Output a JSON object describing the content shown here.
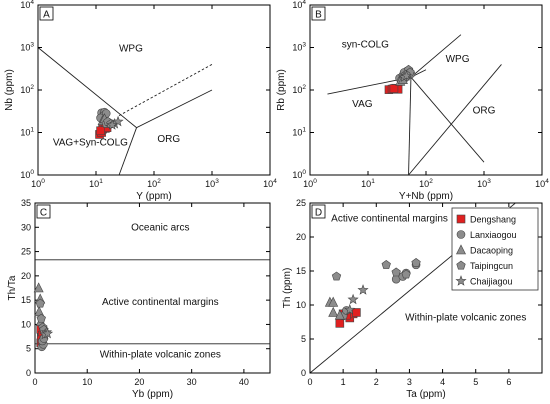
{
  "figure": {
    "background": "#ffffff"
  },
  "colors": {
    "Dengshang": "#e02020",
    "Lanxiaogou": "#8c8c8c",
    "Dacaoping": "#8c8c8c",
    "Taipingcun": "#8c8c8c",
    "Chaijiagou": "#8c8c8c",
    "stroke": "#444444",
    "line": "#222222"
  },
  "chart_data": [
    {
      "id": "A",
      "panel_label": "A",
      "type": "scatter",
      "xscale": "log",
      "yscale": "log",
      "xlim": [
        1,
        10000
      ],
      "ylim": [
        1,
        10000
      ],
      "xlabel": "Y (ppm)",
      "ylabel": "Nb (ppm)",
      "xticks": [
        {
          "v": 1,
          "b": "10",
          "e": "0"
        },
        {
          "v": 10,
          "b": "10",
          "e": "1"
        },
        {
          "v": 100,
          "b": "10",
          "e": "2"
        },
        {
          "v": 1000,
          "b": "10",
          "e": "3"
        },
        {
          "v": 10000,
          "b": "10",
          "e": "4"
        }
      ],
      "yticks": [
        {
          "v": 1,
          "b": "10",
          "e": "0"
        },
        {
          "v": 10,
          "b": "10",
          "e": "1"
        },
        {
          "v": 100,
          "b": "10",
          "e": "2"
        },
        {
          "v": 1000,
          "b": "10",
          "e": "3"
        },
        {
          "v": 10000,
          "b": "10",
          "e": "4"
        }
      ],
      "fields": [
        {
          "label": "WPG",
          "x": 40,
          "y": 800
        },
        {
          "label": "VAG+Syn-COLG",
          "x": 8,
          "y": 5
        },
        {
          "label": "ORG",
          "x": 180,
          "y": 6
        }
      ],
      "lines": [
        {
          "style": "solid",
          "points": [
            [
              1,
              1000
            ],
            [
              50,
              13
            ],
            [
              1000,
              100
            ]
          ]
        },
        {
          "style": "solid",
          "points": [
            [
              50,
              13
            ],
            [
              25,
              1
            ]
          ]
        },
        {
          "style": "dashed",
          "points": [
            [
              25,
              25
            ],
            [
              1000,
              400
            ]
          ]
        }
      ],
      "series": [
        {
          "name": "Dengshang",
          "marker": "square",
          "points": [
            [
              11.5,
              9
            ],
            [
              12.5,
              10
            ],
            [
              13,
              12
            ],
            [
              14.5,
              12.5
            ],
            [
              15.5,
              13
            ],
            [
              12,
              11
            ]
          ]
        },
        {
          "name": "Lanxiaogou",
          "marker": "circle",
          "points": [
            [
              12.5,
              29
            ],
            [
              14,
              30
            ],
            [
              13.5,
              25
            ],
            [
              15,
              28
            ],
            [
              12,
              22
            ]
          ]
        },
        {
          "name": "Dacaoping",
          "marker": "triangle",
          "points": [
            [
              13,
              19
            ],
            [
              14,
              21
            ]
          ]
        },
        {
          "name": "Taipingcun",
          "marker": "pentagon",
          "points": [
            [
              15,
              16
            ],
            [
              17,
              17
            ],
            [
              16,
              18
            ],
            [
              18,
              16
            ]
          ]
        },
        {
          "name": "Chaijiagou",
          "marker": "star",
          "points": [
            [
              21,
              16
            ],
            [
              24,
              18
            ],
            [
              19,
              15
            ]
          ]
        }
      ]
    },
    {
      "id": "B",
      "panel_label": "B",
      "type": "scatter",
      "xscale": "log",
      "yscale": "log",
      "xlim": [
        1,
        10000
      ],
      "ylim": [
        1,
        10000
      ],
      "xlabel": "Y+Nb (ppm)",
      "ylabel": "Rb (ppm)",
      "xticks": [
        {
          "v": 1,
          "b": "10",
          "e": "0"
        },
        {
          "v": 10,
          "b": "10",
          "e": "1"
        },
        {
          "v": 100,
          "b": "10",
          "e": "2"
        },
        {
          "v": 1000,
          "b": "10",
          "e": "3"
        },
        {
          "v": 10000,
          "b": "10",
          "e": "4"
        }
      ],
      "yticks": [
        {
          "v": 1,
          "b": "10",
          "e": "0"
        },
        {
          "v": 10,
          "b": "10",
          "e": "1"
        },
        {
          "v": 100,
          "b": "10",
          "e": "2"
        },
        {
          "v": 1000,
          "b": "10",
          "e": "3"
        },
        {
          "v": 10000,
          "b": "10",
          "e": "4"
        }
      ],
      "fields": [
        {
          "label": "syn-COLG",
          "x": 9,
          "y": 1000
        },
        {
          "label": "WPG",
          "x": 350,
          "y": 450
        },
        {
          "label": "VAG",
          "x": 8,
          "y": 40
        },
        {
          "label": "ORG",
          "x": 1000,
          "y": 28
        }
      ],
      "lines": [
        {
          "style": "solid",
          "points": [
            [
              2,
              80
            ],
            [
              55,
              200
            ],
            [
              400,
              2000
            ]
          ]
        },
        {
          "style": "solid",
          "points": [
            [
              55,
              200
            ],
            [
              50,
              1
            ]
          ]
        },
        {
          "style": "solid",
          "points": [
            [
              50,
              1
            ],
            [
              55,
              1
            ]
          ]
        },
        {
          "style": "solid",
          "points": [
            [
              55,
              200
            ],
            [
              100,
              300
            ]
          ]
        },
        {
          "style": "solid",
          "points": [
            [
              50,
              1
            ],
            [
              2000,
              400
            ]
          ]
        },
        {
          "style": "solid",
          "points": [
            [
              55,
              200
            ],
            [
              1000,
              2
            ]
          ]
        }
      ],
      "series": [
        {
          "name": "Dengshang",
          "marker": "square",
          "points": [
            [
              23,
              102
            ],
            [
              26,
              105
            ],
            [
              30,
              110
            ],
            [
              33,
              104
            ],
            [
              28,
              108
            ]
          ]
        },
        {
          "name": "Lanxiaogou",
          "marker": "circle",
          "points": [
            [
              35,
              190
            ],
            [
              40,
              220
            ],
            [
              44,
              250
            ],
            [
              47,
              280
            ],
            [
              50,
              230
            ],
            [
              42,
              260
            ],
            [
              38,
              170
            ],
            [
              45,
              200
            ],
            [
              52,
              270
            ],
            [
              55,
              240
            ]
          ]
        },
        {
          "name": "Dacaoping",
          "marker": "triangle",
          "points": [
            [
              36,
              160
            ],
            [
              40,
              175
            ]
          ]
        },
        {
          "name": "Taipingcun",
          "marker": "pentagon",
          "points": [
            [
              48,
              240
            ],
            [
              50,
              300
            ],
            [
              53,
              260
            ],
            [
              45,
              230
            ]
          ]
        },
        {
          "name": "Chaijiagou",
          "marker": "star",
          "points": [
            [
              42,
              200
            ],
            [
              46,
              215
            ]
          ]
        }
      ]
    },
    {
      "id": "C",
      "panel_label": "C",
      "type": "scatter",
      "xscale": "linear",
      "yscale": "linear",
      "xlim": [
        0,
        45
      ],
      "ylim": [
        0,
        35
      ],
      "xlabel": "Yb (ppm)",
      "ylabel": "Th/Ta",
      "xticks": [
        {
          "v": 0,
          "t": "0"
        },
        {
          "v": 10,
          "t": "10"
        },
        {
          "v": 20,
          "t": "20"
        },
        {
          "v": 30,
          "t": "30"
        },
        {
          "v": 40,
          "t": "40"
        }
      ],
      "yticks": [
        {
          "v": 0,
          "t": "0"
        },
        {
          "v": 5,
          "t": "5"
        },
        {
          "v": 10,
          "t": "10"
        },
        {
          "v": 15,
          "t": "15"
        },
        {
          "v": 20,
          "t": "20"
        },
        {
          "v": 25,
          "t": "25"
        },
        {
          "v": 30,
          "t": "30"
        },
        {
          "v": 35,
          "t": "35"
        }
      ],
      "fields": [
        {
          "label": "Oceanic arcs",
          "x": 24,
          "y": 29.3
        },
        {
          "label": "Active continental margins",
          "x": 24,
          "y": 14
        },
        {
          "label": "Within-plate volcanic zones",
          "x": 24,
          "y": 3.2
        }
      ],
      "lines": [
        {
          "style": "solid",
          "points": [
            [
              0,
              23.3
            ],
            [
              45,
              23.3
            ]
          ]
        },
        {
          "style": "solid",
          "points": [
            [
              0,
              6
            ],
            [
              45,
              6
            ]
          ]
        }
      ],
      "series": [
        {
          "name": "Dengshang",
          "marker": "square",
          "points": [
            [
              1.1,
              6.2
            ],
            [
              1.2,
              7.3
            ],
            [
              1.3,
              8.6
            ],
            [
              1.1,
              9.0
            ],
            [
              1.4,
              7.8
            ],
            [
              1.2,
              6.8
            ]
          ]
        },
        {
          "name": "Lanxiaogou",
          "marker": "circle",
          "points": [
            [
              1.3,
              5.4
            ],
            [
              1.6,
              5.9
            ],
            [
              1.4,
              6.6
            ],
            [
              1.7,
              7.1
            ]
          ]
        },
        {
          "name": "Dacaoping",
          "marker": "triangle",
          "points": [
            [
              0.7,
              17.5
            ],
            [
              1.0,
              15.2
            ],
            [
              0.8,
              12.6
            ],
            [
              1.1,
              10.6
            ]
          ]
        },
        {
          "name": "Taipingcun",
          "marker": "pentagon",
          "points": [
            [
              1.0,
              14.3
            ],
            [
              1.2,
              11.2
            ],
            [
              1.5,
              9.4
            ],
            [
              1.7,
              8.9
            ]
          ]
        },
        {
          "name": "Chaijiagou",
          "marker": "star",
          "points": [
            [
              2.2,
              8.4
            ],
            [
              1.9,
              7.9
            ],
            [
              2.4,
              8.1
            ]
          ]
        }
      ]
    },
    {
      "id": "D",
      "panel_label": "D",
      "type": "scatter",
      "xscale": "linear",
      "yscale": "linear",
      "xlim": [
        0,
        7
      ],
      "ylim": [
        0,
        25
      ],
      "xlabel": "Ta (ppm)",
      "ylabel": "Th (ppm)",
      "xticks": [
        {
          "v": 0,
          "t": "0"
        },
        {
          "v": 1,
          "t": "1"
        },
        {
          "v": 2,
          "t": "2"
        },
        {
          "v": 3,
          "t": "3"
        },
        {
          "v": 4,
          "t": "4"
        },
        {
          "v": 5,
          "t": "5"
        },
        {
          "v": 6,
          "t": "6"
        }
      ],
      "yticks": [
        {
          "v": 0,
          "t": "0"
        },
        {
          "v": 5,
          "t": "5"
        },
        {
          "v": 10,
          "t": "10"
        },
        {
          "v": 15,
          "t": "15"
        },
        {
          "v": 20,
          "t": "20"
        },
        {
          "v": 25,
          "t": "25"
        }
      ],
      "fields": [
        {
          "label": "Active continental margins",
          "x": 2.4,
          "y": 22.3
        },
        {
          "label": "Within-plate volcanic zones",
          "x": 4.7,
          "y": 7.7
        }
      ],
      "lines": [
        {
          "style": "solid",
          "points": [
            [
              0,
              0
            ],
            [
              6.2,
              25
            ]
          ]
        }
      ],
      "legend": {
        "position": "top-right"
      },
      "series": [
        {
          "name": "Dengshang",
          "marker": "square",
          "points": [
            [
              0.9,
              7.3
            ],
            [
              1.0,
              8.7
            ],
            [
              1.2,
              8.1
            ],
            [
              1.3,
              8.7
            ],
            [
              1.1,
              8.5
            ],
            [
              1.4,
              8.9
            ]
          ]
        },
        {
          "name": "Lanxiaogou",
          "marker": "circle",
          "points": [
            [
              1.0,
              8.4
            ],
            [
              1.1,
              9.2
            ],
            [
              2.6,
              13.8
            ],
            [
              2.9,
              14.7
            ],
            [
              3.2,
              15.9
            ],
            [
              2.8,
              14.2
            ]
          ]
        },
        {
          "name": "Dacaoping",
          "marker": "triangle",
          "points": [
            [
              0.6,
              10.4
            ],
            [
              0.7,
              10.4
            ],
            [
              0.7,
              8.9
            ],
            [
              0.9,
              8.5
            ]
          ]
        },
        {
          "name": "Taipingcun",
          "marker": "pentagon",
          "points": [
            [
              0.8,
              14.2
            ],
            [
              2.3,
              15.9
            ],
            [
              2.6,
              14.8
            ],
            [
              3.2,
              16.2
            ],
            [
              2.9,
              14.5
            ]
          ]
        },
        {
          "name": "Chaijiagou",
          "marker": "star",
          "points": [
            [
              1.3,
              10.8
            ],
            [
              1.6,
              12.2
            ],
            [
              1.2,
              9.3
            ]
          ]
        }
      ]
    }
  ]
}
